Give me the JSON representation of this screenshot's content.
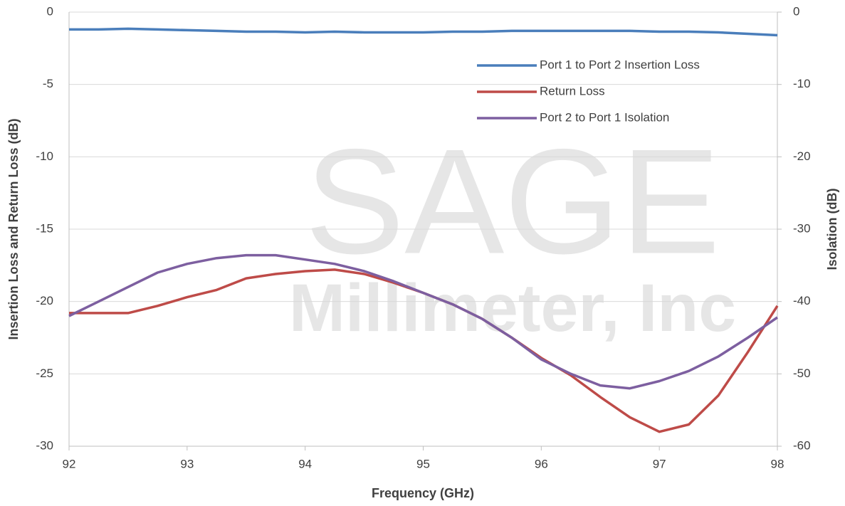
{
  "chart_data": {
    "type": "line",
    "watermark": [
      "SAGE",
      "Millimeter, Inc"
    ],
    "x_label": "Frequency (GHz)",
    "y_label": "Insertion Loss and Return Loss (dB)",
    "y2_label": "Isolation (dB)",
    "x": [
      92,
      92.25,
      92.5,
      92.75,
      93,
      93.25,
      93.5,
      93.75,
      94,
      94.25,
      94.5,
      94.75,
      95,
      95.25,
      95.5,
      95.75,
      96,
      96.25,
      96.5,
      96.75,
      97,
      97.25,
      97.5,
      97.75,
      98
    ],
    "series": [
      {
        "name": "Port 1 to Port 2 Insertion Loss",
        "color": "#4a7ebb",
        "values": [
          -1.2,
          -1.2,
          -1.15,
          -1.2,
          -1.25,
          -1.3,
          -1.35,
          -1.35,
          -1.4,
          -1.35,
          -1.4,
          -1.4,
          -1.4,
          -1.35,
          -1.35,
          -1.3,
          -1.3,
          -1.3,
          -1.3,
          -1.3,
          -1.35,
          -1.35,
          -1.4,
          -1.5,
          -1.6
        ]
      },
      {
        "name": "Return Loss",
        "color": "#be4b48",
        "values": [
          -20.8,
          -20.8,
          -20.8,
          -20.3,
          -19.7,
          -19.2,
          -18.4,
          -18.1,
          -17.9,
          -17.8,
          -18.1,
          -18.7,
          -19.4,
          -20.2,
          -21.2,
          -22.5,
          -23.9,
          -25.1,
          -26.6,
          -28.0,
          -29.0,
          -28.5,
          -26.5,
          -23.5,
          -20.3
        ]
      },
      {
        "name": "Port 2 to Port 1 Isolation",
        "color": "#7d5fa0",
        "axis": "y2",
        "values": [
          -42,
          -40,
          -38,
          -36,
          -34.8,
          -34,
          -33.6,
          -33.6,
          -34.2,
          -34.8,
          -35.8,
          -37.2,
          -38.8,
          -40.4,
          -42.4,
          -45,
          -48,
          -50,
          -51.6,
          -52,
          -51,
          -49.6,
          -47.6,
          -45,
          -42.2
        ]
      }
    ],
    "xlim": [
      92,
      98
    ],
    "xticks": [
      92,
      93,
      94,
      95,
      96,
      97,
      98
    ],
    "ylim": [
      -30,
      0
    ],
    "yticks": [
      -30,
      -25,
      -20,
      -15,
      -10,
      -5,
      0
    ],
    "y2lim": [
      -60,
      0
    ],
    "y2ticks": [
      -60,
      -50,
      -40,
      -30,
      -20,
      -10,
      0
    ],
    "grid": true,
    "legend": "upper right"
  }
}
